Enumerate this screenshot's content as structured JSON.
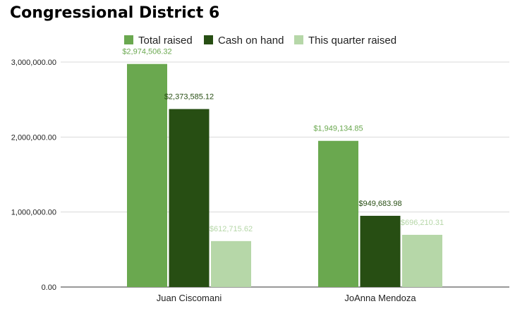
{
  "chart_data": {
    "type": "bar",
    "title": "Congressional District 6",
    "categories": [
      "Juan Ciscomani",
      "JoAnna Mendoza"
    ],
    "series": [
      {
        "name": "Total raised",
        "color": "#6aa84f",
        "label_color": "#6aa84f",
        "values": [
          2974506.32,
          1949134.85
        ],
        "data_labels": [
          "$2,974,506.32",
          "$1,949,134.85"
        ]
      },
      {
        "name": "Cash on hand",
        "color": "#274e13",
        "label_color": "#274e13",
        "values": [
          2373585.12,
          949683.98
        ],
        "data_labels": [
          "$2,373,585.12",
          "$949,683.98"
        ]
      },
      {
        "name": "This quarter raised",
        "color": "#b6d7a8",
        "label_color": "#b6d7a8",
        "values": [
          612715.62,
          696210.31
        ],
        "data_labels": [
          "$612,715.62",
          "$696,210.31"
        ]
      }
    ],
    "ylim": [
      0,
      3000000
    ],
    "yticks": [
      0,
      1000000,
      2000000,
      3000000
    ],
    "ytick_labels": [
      "0.00",
      "1,000,000.00",
      "2,000,000.00",
      "3,000,000.00"
    ],
    "xlabel": "",
    "ylabel": "",
    "grid": true,
    "legend_position": "top"
  }
}
